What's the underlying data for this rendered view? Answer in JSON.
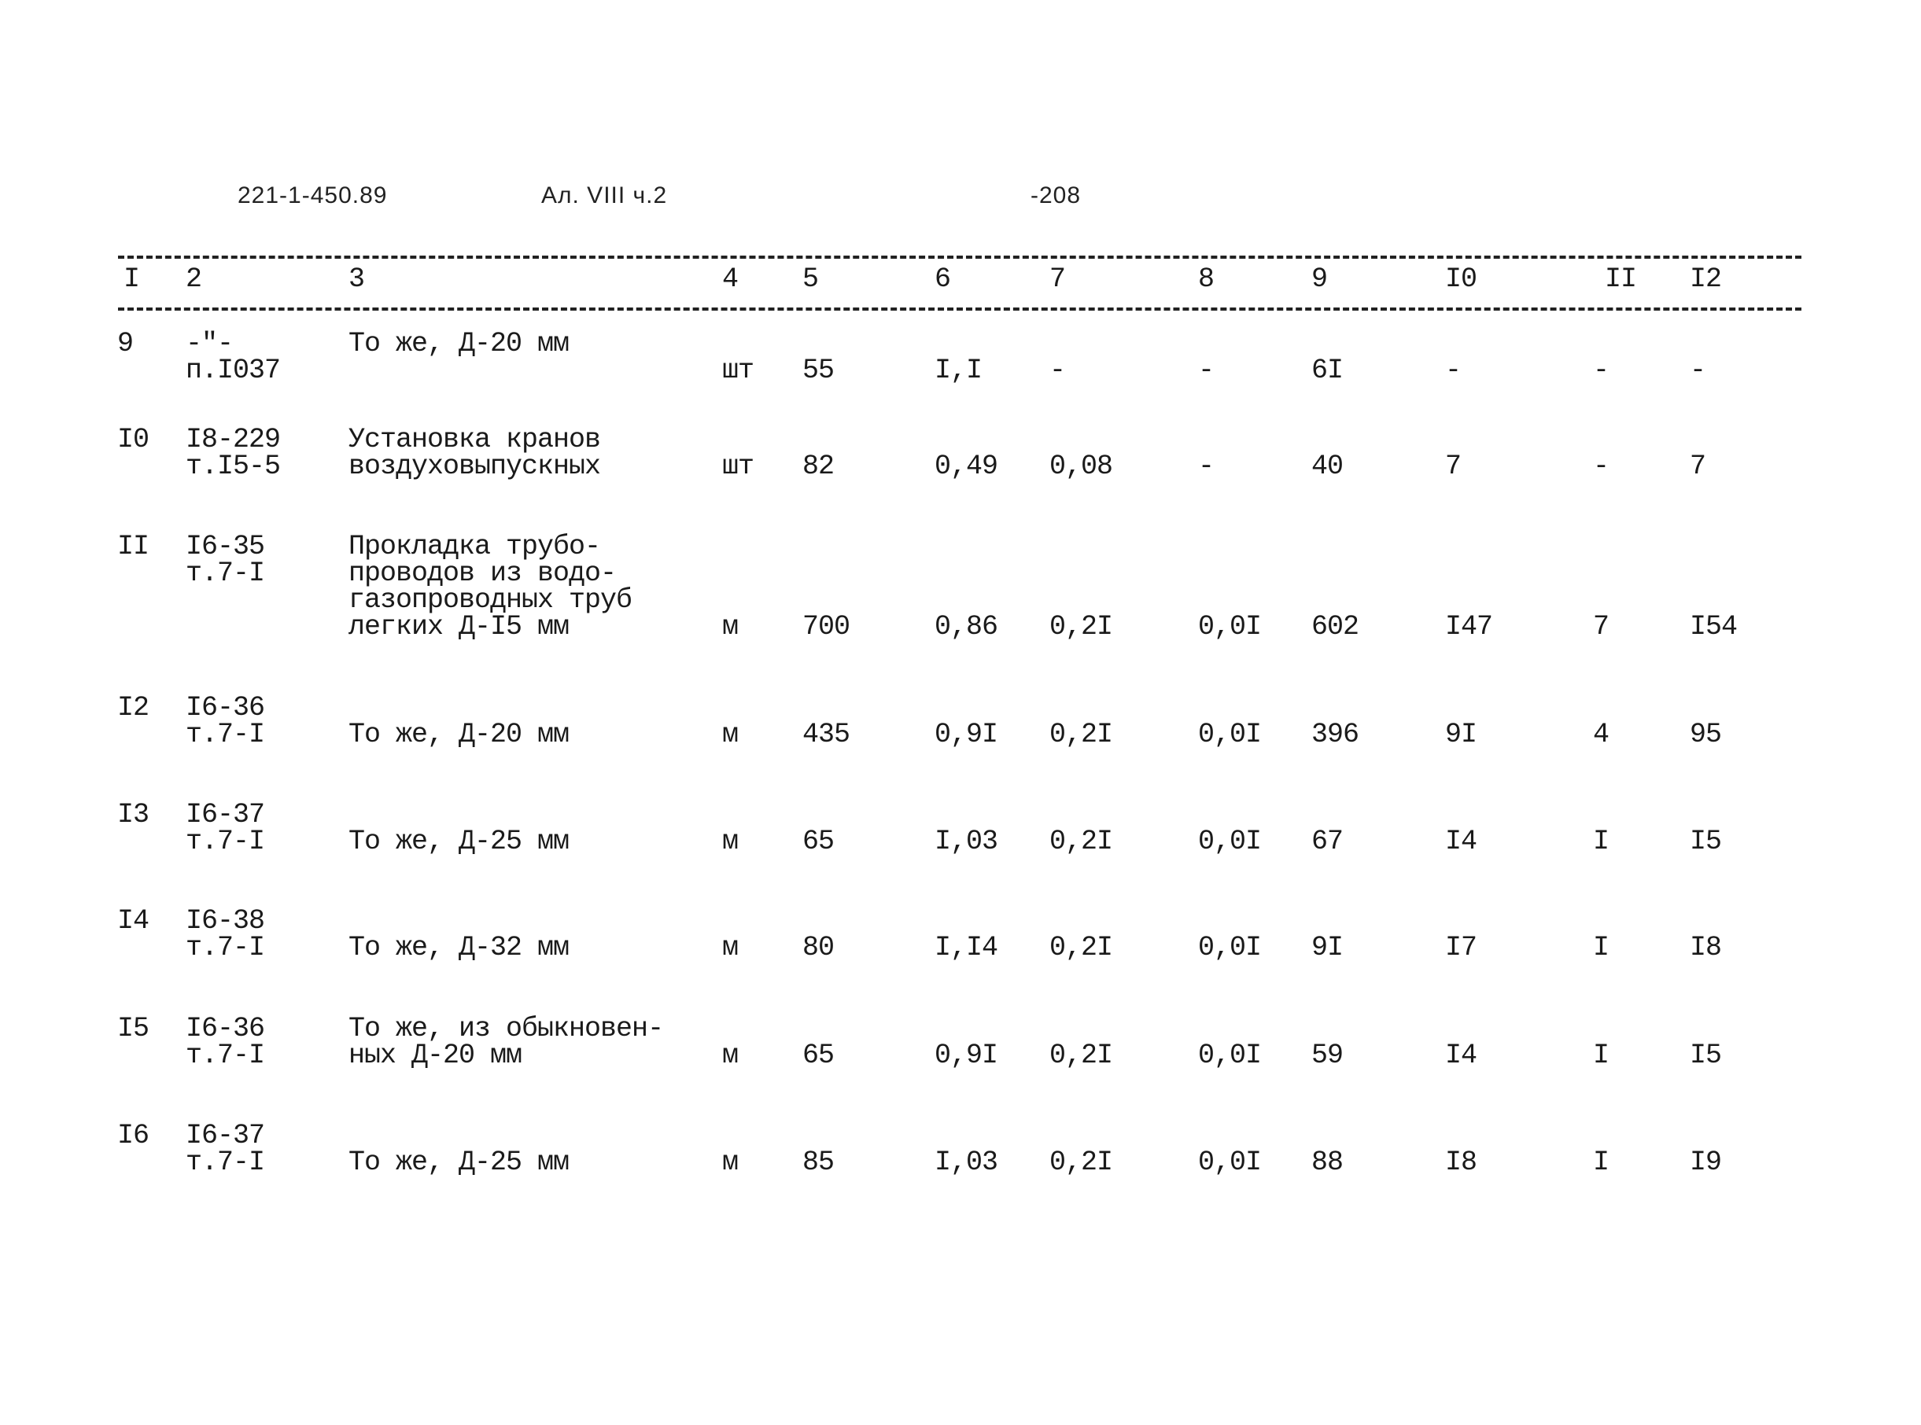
{
  "header": {
    "doc_code": "221-1-450.89",
    "album": "Ал. VIII ч.2",
    "page": "-208"
  },
  "columns": [
    "I",
    "2",
    "3",
    "4",
    "5",
    "6",
    "7",
    "8",
    "9",
    "I0",
    "II",
    "I2"
  ],
  "rows": [
    {
      "num": "9",
      "ref": [
        "-\"-",
        "п.I037"
      ],
      "desc": [
        "То же, Д-20 мм"
      ],
      "unit": "шт",
      "c5": "55",
      "c6": "I,I",
      "c7": "-",
      "c8": "-",
      "c9": "6I",
      "c10": "-",
      "c11": "-",
      "c12": "-"
    },
    {
      "num": "I0",
      "ref": [
        "I8-229",
        "т.I5-5"
      ],
      "desc": [
        "Установка кранов",
        "воздуховыпускных"
      ],
      "unit": "шт",
      "c5": "82",
      "c6": "0,49",
      "c7": "0,08",
      "c8": "-",
      "c9": "40",
      "c10": "7",
      "c11": "-",
      "c12": "7"
    },
    {
      "num": "II",
      "ref": [
        "I6-35",
        "т.7-I"
      ],
      "desc": [
        "Прокладка трубо-",
        "проводов из водо-",
        "газопроводных труб",
        "легких Д-I5 мм"
      ],
      "unit": "м",
      "c5": "700",
      "c6": "0,86",
      "c7": "0,2I",
      "c8": "0,0I",
      "c9": "602",
      "c10": "I47",
      "c11": "7",
      "c12": "I54"
    },
    {
      "num": "I2",
      "ref": [
        "I6-36",
        "т.7-I"
      ],
      "desc": [
        "",
        "То же, Д-20 мм"
      ],
      "unit": "м",
      "c5": "435",
      "c6": "0,9I",
      "c7": "0,2I",
      "c8": "0,0I",
      "c9": "396",
      "c10": "9I",
      "c11": "4",
      "c12": "95"
    },
    {
      "num": "I3",
      "ref": [
        "I6-37",
        "т.7-I"
      ],
      "desc": [
        "",
        "То же, Д-25 мм"
      ],
      "unit": "м",
      "c5": "65",
      "c6": "I,03",
      "c7": "0,2I",
      "c8": "0,0I",
      "c9": "67",
      "c10": "I4",
      "c11": "I",
      "c12": "I5"
    },
    {
      "num": "I4",
      "ref": [
        "I6-38",
        "т.7-I"
      ],
      "desc": [
        "",
        "То же, Д-32 мм"
      ],
      "unit": "м",
      "c5": "80",
      "c6": "I,I4",
      "c7": "0,2I",
      "c8": "0,0I",
      "c9": "9I",
      "c10": "I7",
      "c11": "I",
      "c12": "I8"
    },
    {
      "num": "I5",
      "ref": [
        "I6-36",
        "т.7-I"
      ],
      "desc": [
        "То же, из обыкновен-",
        "ных Д-20 мм"
      ],
      "unit": "м",
      "c5": "65",
      "c6": "0,9I",
      "c7": "0,2I",
      "c8": "0,0I",
      "c9": "59",
      "c10": "I4",
      "c11": "I",
      "c12": "I5"
    },
    {
      "num": "I6",
      "ref": [
        "I6-37",
        "т.7-I"
      ],
      "desc": [
        "",
        "То же, Д-25 мм"
      ],
      "unit": "м",
      "c5": "85",
      "c6": "I,03",
      "c7": "0,2I",
      "c8": "0,0I",
      "c9": "88",
      "c10": "I8",
      "c11": "I",
      "c12": "I9"
    }
  ]
}
